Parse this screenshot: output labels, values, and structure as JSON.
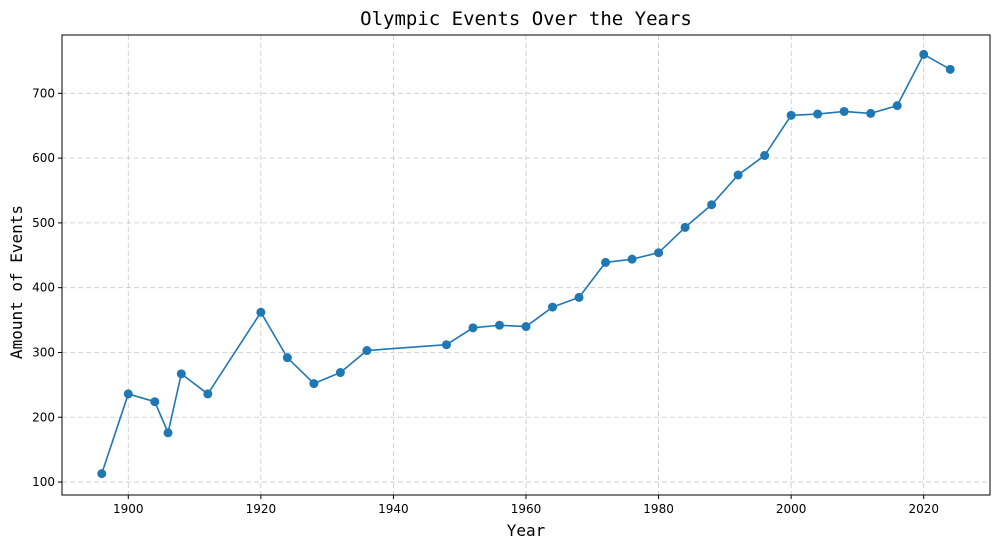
{
  "chart_data": {
    "type": "line",
    "title": "Olympic Events Over the Years",
    "xlabel": "Year",
    "ylabel": "Amount of Events",
    "xlim": [
      1890,
      2030
    ],
    "ylim": [
      80,
      790
    ],
    "xticks": [
      1900,
      1920,
      1940,
      1960,
      1980,
      2000,
      2020
    ],
    "yticks": [
      100,
      200,
      300,
      400,
      500,
      600,
      700
    ],
    "grid": true,
    "grid_style": "dashed",
    "legend": "none",
    "series": [
      {
        "color": "#1f77b4",
        "marker": "circle",
        "x": [
          1896,
          1900,
          1904,
          1906,
          1908,
          1912,
          1920,
          1924,
          1928,
          1932,
          1936,
          1948,
          1952,
          1956,
          1960,
          1964,
          1968,
          1972,
          1976,
          1980,
          1984,
          1988,
          1992,
          1996,
          2000,
          2004,
          2008,
          2012,
          2016,
          2020,
          2024
        ],
        "y": [
          113,
          236,
          224,
          176,
          267,
          236,
          362,
          292,
          252,
          269,
          303,
          312,
          338,
          342,
          340,
          370,
          385,
          439,
          444,
          454,
          493,
          528,
          574,
          604,
          666,
          668,
          672,
          669,
          681,
          760,
          737
        ]
      }
    ]
  }
}
